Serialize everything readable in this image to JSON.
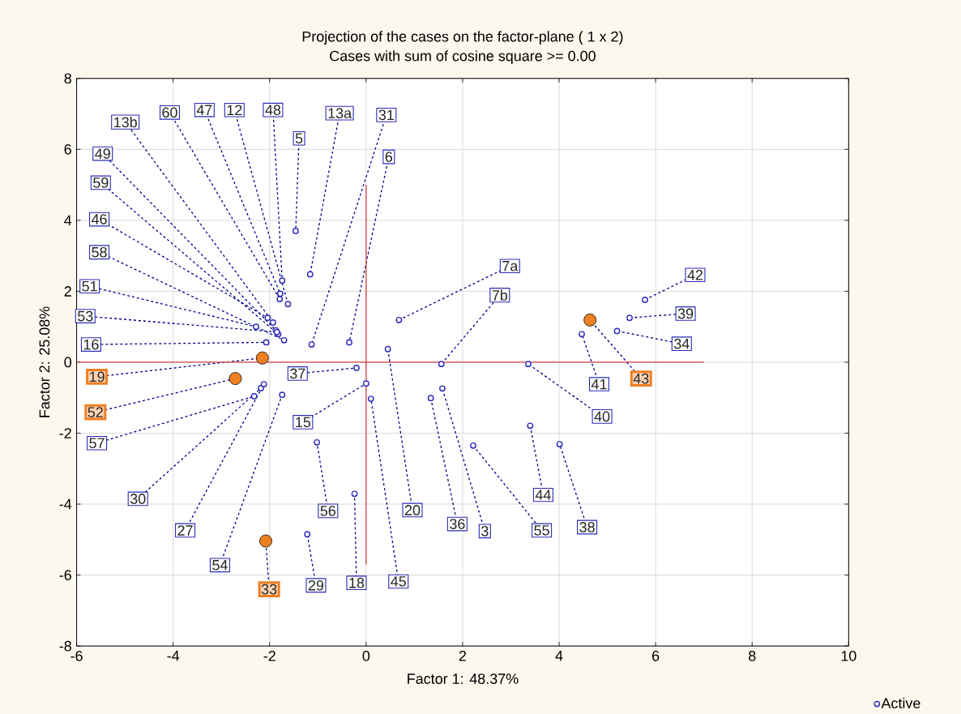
{
  "chart_data": {
    "type": "scatter",
    "title": "Projection of the cases on the factor-plane (  1 x   2)",
    "subtitle": "Cases with sum of cosine square >=  0.00",
    "xlabel": "Factor 1: 48.37%",
    "ylabel": "Factor 2: 25.08%",
    "xlim": [
      -6,
      10
    ],
    "ylim": [
      -8,
      8
    ],
    "xticks": [
      -6,
      -4,
      -2,
      0,
      2,
      4,
      6,
      8,
      10
    ],
    "yticks": [
      -8,
      -6,
      -4,
      -2,
      0,
      2,
      4,
      6,
      8
    ],
    "grid": true,
    "legend": "bottom right",
    "series": [
      {
        "name": "Active",
        "marker": "circle",
        "color": "#2b2bb8",
        "x": [
          -1.93,
          -1.79,
          -1.78,
          -1.62,
          -1.74,
          -1.46,
          -1.16,
          -1.13,
          -0.35,
          -1.87,
          -1.82,
          -2.04,
          -1.7,
          -2.28,
          -1.85,
          -2.07,
          -2.32,
          -2.18,
          -2.12,
          -1.74,
          -1.22,
          -0.24,
          0.1,
          -1.02,
          0.45,
          1.34,
          1.58,
          2.22,
          4.01,
          3.4,
          -0.2,
          0.0,
          4.47,
          3.36,
          5.2,
          5.46,
          5.78,
          0.68,
          1.56
        ],
        "values": [
          1.12,
          1.78,
          1.93,
          1.64,
          2.3,
          3.7,
          2.48,
          0.5,
          0.56,
          0.9,
          0.79,
          1.25,
          0.62,
          1.0,
          0.85,
          0.56,
          -0.96,
          -0.73,
          -0.62,
          -0.92,
          -4.85,
          -3.71,
          -1.03,
          -2.26,
          0.37,
          -1.01,
          -0.74,
          -2.35,
          -2.31,
          -1.79,
          -0.16,
          -0.6,
          0.79,
          -0.05,
          0.88,
          1.25,
          1.76,
          1.19,
          -0.05
        ]
      },
      {
        "marker": "circle",
        "color": "#f07f22",
        "x": [
          -2.15,
          -2.71,
          -2.08,
          4.64
        ],
        "values": [
          0.12,
          -0.46,
          -5.04,
          1.19
        ]
      },
      {
        "type": "line",
        "marker": "none",
        "color": "#d04545",
        "x": [
          0,
          0
        ],
        "values": [
          -5.7,
          5
        ]
      },
      {
        "type": "line",
        "marker": "none",
        "color": "#d04545",
        "x": [
          -6,
          7
        ],
        "values": [
          0,
          0
        ]
      }
    ],
    "annotations": [
      {
        "text": "13b",
        "x": -1.93,
        "y": 1.12
      },
      {
        "text": "60",
        "x": -1.79,
        "y": 1.78
      },
      {
        "text": "47",
        "x": -1.78,
        "y": 1.93
      },
      {
        "text": "12",
        "x": -1.62,
        "y": 1.64
      },
      {
        "text": "48",
        "x": -1.74,
        "y": 2.3
      },
      {
        "text": "5",
        "x": -1.46,
        "y": 3.7
      },
      {
        "text": "13a",
        "x": -1.16,
        "y": 2.48
      },
      {
        "text": "31",
        "x": -1.13,
        "y": 0.5
      },
      {
        "text": "6",
        "x": -0.35,
        "y": 0.56
      },
      {
        "text": "49",
        "x": -1.87,
        "y": 0.9
      },
      {
        "text": "59",
        "x": -1.82,
        "y": 0.79
      },
      {
        "text": "46",
        "x": -2.04,
        "y": 1.25
      },
      {
        "text": "58",
        "x": -1.7,
        "y": 0.62
      },
      {
        "text": "51",
        "x": -2.28,
        "y": 1.0
      },
      {
        "text": "53",
        "x": -1.85,
        "y": 0.85
      },
      {
        "text": "16",
        "x": -2.07,
        "y": 0.56
      },
      {
        "text": "19",
        "x": -2.15,
        "y": 0.12
      },
      {
        "text": "52",
        "x": -2.71,
        "y": -0.46
      },
      {
        "text": "57",
        "x": -2.32,
        "y": -0.96
      },
      {
        "text": "30",
        "x": -2.18,
        "y": -0.73
      },
      {
        "text": "27",
        "x": -2.12,
        "y": -0.62
      },
      {
        "text": "54",
        "x": -1.74,
        "y": -0.92
      },
      {
        "text": "33",
        "x": -2.08,
        "y": -5.04
      },
      {
        "text": "29",
        "x": -1.22,
        "y": -4.85
      },
      {
        "text": "18",
        "x": -0.24,
        "y": -3.71
      },
      {
        "text": "45",
        "x": 0.1,
        "y": -1.03
      },
      {
        "text": "56",
        "x": -1.02,
        "y": -2.26
      },
      {
        "text": "20",
        "x": 0.45,
        "y": 0.37
      },
      {
        "text": "36",
        "x": 1.34,
        "y": -1.01
      },
      {
        "text": "3",
        "x": 1.58,
        "y": -0.74
      },
      {
        "text": "55",
        "x": 2.22,
        "y": -2.35
      },
      {
        "text": "38",
        "x": 4.01,
        "y": -2.31
      },
      {
        "text": "44",
        "x": 3.4,
        "y": -1.79
      },
      {
        "text": "37",
        "x": -0.2,
        "y": -0.16
      },
      {
        "text": "15",
        "x": 0.0,
        "y": -0.6
      },
      {
        "text": "41",
        "x": 4.47,
        "y": 0.79
      },
      {
        "text": "40",
        "x": 3.36,
        "y": -0.05
      },
      {
        "text": "43",
        "x": 4.64,
        "y": 1.19
      },
      {
        "text": "34",
        "x": 5.2,
        "y": 0.88
      },
      {
        "text": "39",
        "x": 5.46,
        "y": 1.25
      },
      {
        "text": "42",
        "x": 5.78,
        "y": 1.76
      },
      {
        "text": "7a",
        "x": 0.68,
        "y": 1.19
      },
      {
        "text": "7b",
        "x": 1.56,
        "y": -0.05
      }
    ]
  }
}
